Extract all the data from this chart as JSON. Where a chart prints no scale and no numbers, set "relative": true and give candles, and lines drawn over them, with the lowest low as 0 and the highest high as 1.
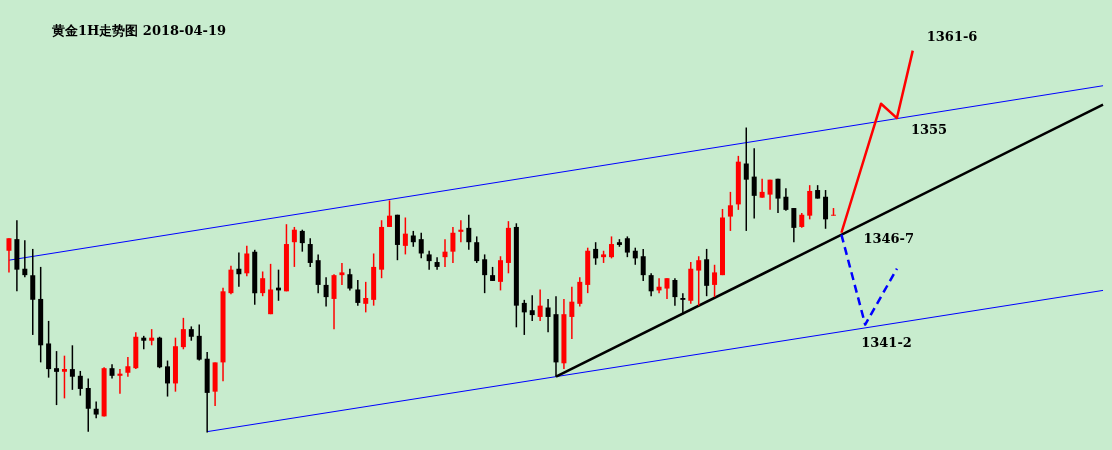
{
  "chart_data": {
    "type": "candlestick",
    "title": "黄金1H走势图  2018-04-19",
    "relative": true,
    "tick_labels": false,
    "categories": [
      null,
      null,
      null,
      null,
      null,
      null,
      null,
      null,
      null,
      null,
      null,
      null,
      null,
      null,
      null,
      null,
      null,
      null,
      null,
      null,
      null,
      null,
      null,
      null,
      null,
      null,
      null,
      null,
      null,
      null,
      null,
      null,
      null,
      null,
      null,
      null,
      null,
      null,
      null,
      null,
      null,
      null,
      null,
      null,
      null,
      null,
      null,
      null,
      null,
      null,
      null,
      null,
      null,
      null,
      null,
      null,
      null,
      null,
      null,
      null,
      null,
      null,
      null,
      null,
      null,
      null,
      null,
      null,
      null,
      null,
      null,
      null,
      null,
      null,
      null,
      null,
      null,
      null,
      null,
      null,
      null,
      null,
      null,
      null,
      null,
      null,
      null,
      null,
      null,
      null,
      null,
      null,
      null,
      null,
      null,
      null,
      null,
      null,
      null,
      null,
      null,
      null,
      null,
      null,
      null,
      null,
      null,
      null,
      null,
      null,
      null,
      null,
      null,
      null,
      null,
      null,
      null,
      null,
      null,
      null,
      null,
      null,
      null,
      null,
      null,
      null,
      null,
      null,
      null,
      null,
      null,
      null,
      null,
      null,
      null,
      null,
      null,
      null,
      null
    ],
    "ohlc": [
      [
        0.596,
        0.637,
        0.525,
        0.637
      ],
      [
        0.634,
        0.696,
        0.463,
        0.534
      ],
      [
        0.537,
        0.63,
        0.509,
        0.516
      ],
      [
        0.516,
        0.602,
        0.32,
        0.435
      ],
      [
        0.438,
        0.543,
        0.23,
        0.286
      ],
      [
        0.292,
        0.366,
        0.18,
        0.208
      ],
      [
        0.211,
        0.267,
        0.09,
        0.199
      ],
      [
        0.199,
        0.252,
        0.112,
        0.208
      ],
      [
        0.208,
        0.286,
        0.14,
        0.183
      ],
      [
        0.186,
        0.202,
        0.121,
        0.143
      ],
      [
        0.146,
        0.177,
        0.003,
        0.078
      ],
      [
        0.078,
        0.102,
        0.047,
        0.059
      ],
      [
        0.053,
        0.214,
        0.053,
        0.211
      ],
      [
        0.211,
        0.224,
        0.177,
        0.186
      ],
      [
        0.186,
        0.208,
        0.127,
        0.193
      ],
      [
        0.196,
        0.248,
        0.183,
        0.217
      ],
      [
        0.211,
        0.329,
        0.208,
        0.314
      ],
      [
        0.311,
        0.317,
        0.273,
        0.301
      ],
      [
        0.301,
        0.339,
        0.286,
        0.311
      ],
      [
        0.311,
        0.314,
        0.211,
        0.214
      ],
      [
        0.217,
        0.236,
        0.118,
        0.161
      ],
      [
        0.161,
        0.311,
        0.134,
        0.283
      ],
      [
        0.28,
        0.376,
        0.273,
        0.339
      ],
      [
        0.339,
        0.348,
        0.301,
        0.314
      ],
      [
        0.317,
        0.354,
        0.236,
        0.239
      ],
      [
        0.242,
        0.264,
        0,
        0.13
      ],
      [
        0.134,
        0.23,
        0.087,
        0.23
      ],
      [
        0.23,
        0.475,
        0.168,
        0.463
      ],
      [
        0.457,
        0.547,
        0.453,
        0.534
      ],
      [
        0.537,
        0.59,
        0.478,
        0.519
      ],
      [
        0.522,
        0.612,
        0.512,
        0.587
      ],
      [
        0.593,
        0.599,
        0.419,
        0.457
      ],
      [
        0.457,
        0.528,
        0.447,
        0.506
      ],
      [
        0.388,
        0.553,
        0.388,
        0.469
      ],
      [
        0.475,
        0.534,
        0.432,
        0.466
      ],
      [
        0.463,
        0.683,
        0.463,
        0.618
      ],
      [
        0.624,
        0.674,
        0.543,
        0.665
      ],
      [
        0.661,
        0.665,
        0.593,
        0.621
      ],
      [
        0.618,
        0.637,
        0.543,
        0.556
      ],
      [
        0.565,
        0.584,
        0.457,
        0.484
      ],
      [
        0.484,
        0.509,
        0.413,
        0.444
      ],
      [
        0.438,
        0.519,
        0.339,
        0.516
      ],
      [
        0.516,
        0.556,
        0.484,
        0.525
      ],
      [
        0.519,
        0.537,
        0.466,
        0.472
      ],
      [
        0.469,
        0.5,
        0.416,
        0.425
      ],
      [
        0.422,
        0.494,
        0.394,
        0.441
      ],
      [
        0.435,
        0.587,
        0.416,
        0.543
      ],
      [
        0.534,
        0.696,
        0.506,
        0.674
      ],
      [
        0.674,
        0.761,
        0.674,
        0.711
      ],
      [
        0.714,
        0.714,
        0.565,
        0.615
      ],
      [
        0.612,
        0.705,
        0.584,
        0.652
      ],
      [
        0.646,
        0.661,
        0.609,
        0.624
      ],
      [
        0.634,
        0.655,
        0.571,
        0.587
      ],
      [
        0.584,
        0.596,
        0.534,
        0.562
      ],
      [
        0.559,
        0.575,
        0.534,
        0.543
      ],
      [
        0.575,
        0.634,
        0.543,
        0.593
      ],
      [
        0.593,
        0.674,
        0.556,
        0.655
      ],
      [
        0.658,
        0.696,
        0.624,
        0.665
      ],
      [
        0.671,
        0.714,
        0.599,
        0.624
      ],
      [
        0.624,
        0.643,
        0.556,
        0.562
      ],
      [
        0.568,
        0.584,
        0.457,
        0.516
      ],
      [
        0.516,
        0.543,
        0.497,
        0.497
      ],
      [
        0.494,
        0.578,
        0.466,
        0.565
      ],
      [
        0.556,
        0.693,
        0.522,
        0.671
      ],
      [
        0.674,
        0.686,
        0.345,
        0.416
      ],
      [
        0.425,
        0.435,
        0.32,
        0.394
      ],
      [
        0.401,
        0.45,
        0.366,
        0.385
      ],
      [
        0.379,
        0.469,
        0.366,
        0.416
      ],
      [
        0.41,
        0.438,
        0.329,
        0.379
      ],
      [
        0.388,
        0.447,
        0.183,
        0.23
      ],
      [
        0.227,
        0.438,
        0.208,
        0.388
      ],
      [
        0.379,
        0.478,
        0.307,
        0.429
      ],
      [
        0.422,
        0.509,
        0.413,
        0.494
      ],
      [
        0.484,
        0.606,
        0.457,
        0.596
      ],
      [
        0.602,
        0.624,
        0.55,
        0.571
      ],
      [
        0.575,
        0.596,
        0.556,
        0.584
      ],
      [
        0.575,
        0.643,
        0.571,
        0.618
      ],
      [
        0.624,
        0.634,
        0.609,
        0.615
      ],
      [
        0.637,
        0.643,
        0.575,
        0.59
      ],
      [
        0.596,
        0.606,
        0.55,
        0.571
      ],
      [
        0.578,
        0.602,
        0.497,
        0.516
      ],
      [
        0.516,
        0.522,
        0.447,
        0.463
      ],
      [
        0.466,
        0.506,
        0.457,
        0.478
      ],
      [
        0.472,
        0.506,
        0.438,
        0.506
      ],
      [
        0.5,
        0.506,
        0.416,
        0.444
      ],
      [
        0.441,
        0.457,
        0.388,
        0.435
      ],
      [
        0.432,
        0.559,
        0.422,
        0.537
      ],
      [
        0.531,
        0.578,
        0.416,
        0.565
      ],
      [
        0.568,
        0.602,
        0.447,
        0.481
      ],
      [
        0.484,
        0.55,
        0.444,
        0.525
      ],
      [
        0.516,
        0.733,
        0.516,
        0.705
      ],
      [
        0.708,
        0.789,
        0.661,
        0.745
      ],
      [
        0.748,
        0.907,
        0.73,
        0.888
      ],
      [
        0.882,
        1,
        0.661,
        0.829
      ],
      [
        0.839,
        0.932,
        0.702,
        0.776
      ],
      [
        0.77,
        0.832,
        0.77,
        0.789
      ],
      [
        0.78,
        0.829,
        0.73,
        0.829
      ],
      [
        0.832,
        0.832,
        0.72,
        0.767
      ],
      [
        0.773,
        0.801,
        0.727,
        0.73
      ],
      [
        0.736,
        0.736,
        0.624,
        0.671
      ],
      [
        0.674,
        0.72,
        0.671,
        0.714
      ],
      [
        0.711,
        0.811,
        0.699,
        0.792
      ],
      [
        0.795,
        0.811,
        0.767,
        0.767
      ],
      [
        0.773,
        0.795,
        0.668,
        0.699
      ],
      [
        0.711,
        0.736,
        0.711,
        0.714
      ],
      null,
      null,
      null,
      null,
      null,
      null,
      null,
      null,
      null,
      null,
      null,
      null,
      null,
      null,
      null,
      null,
      null,
      null,
      null,
      null,
      null,
      null,
      null,
      null,
      null,
      null,
      null,
      null,
      null,
      null,
      null,
      null,
      null,
      null
    ],
    "colors": [
      "#ff0000",
      "#000000",
      "#000000",
      "#000000",
      "#000000",
      "#000000",
      "#000000",
      "#ff0000",
      "#000000",
      "#000000",
      "#000000",
      "#000000",
      "#ff0000",
      "#000000",
      "#ff0000",
      "#ff0000",
      "#ff0000",
      "#000000",
      "#ff0000",
      "#000000",
      "#000000",
      "#ff0000",
      "#ff0000",
      "#000000",
      "#000000",
      "#000000",
      "#ff0000",
      "#ff0000",
      "#ff0000",
      "#000000",
      "#ff0000",
      "#000000",
      "#ff0000",
      "#ff0000",
      "#000000",
      "#ff0000",
      "#ff0000",
      "#000000",
      "#000000",
      "#000000",
      "#000000",
      "#ff0000",
      "#ff0000",
      "#000000",
      "#000000",
      "#ff0000",
      "#ff0000",
      "#ff0000",
      "#ff0000",
      "#000000",
      "#ff0000",
      "#000000",
      "#000000",
      "#000000",
      "#000000",
      "#ff0000",
      "#ff0000",
      "#ff0000",
      "#000000",
      "#000000",
      "#000000",
      "#000000",
      "#ff0000",
      "#ff0000",
      "#000000",
      "#000000",
      "#000000",
      "#ff0000",
      "#000000",
      "#000000",
      "#ff0000",
      "#ff0000",
      "#ff0000",
      "#ff0000",
      "#000000",
      "#ff0000",
      "#ff0000",
      "#000000",
      "#000000",
      "#000000",
      "#000000",
      "#000000",
      "#ff0000",
      "#ff0000",
      "#000000",
      "#000000",
      "#ff0000",
      "#ff0000",
      "#000000",
      "#ff0000",
      "#ff0000",
      "#ff0000",
      "#ff0000",
      "#000000",
      "#000000",
      "#ff0000",
      "#ff0000",
      "#000000",
      "#000000",
      "#000000",
      "#ff0000",
      "#ff0000",
      "#000000",
      "#000000",
      "#ff0000",
      null,
      null,
      null,
      null,
      null,
      null,
      null,
      null,
      null,
      null,
      null,
      null,
      null,
      null,
      null,
      null,
      null,
      null,
      null,
      null,
      null,
      null,
      null,
      null,
      null,
      null,
      null,
      null,
      null,
      null,
      null,
      null,
      null,
      null
    ],
    "series": [
      {
        "type": "line",
        "color": "#0000ff",
        "line_style": "solid",
        "values": [
          0.565,
          null,
          null,
          null,
          null,
          null,
          null,
          null,
          null,
          null,
          null,
          null,
          null,
          null,
          null,
          null,
          null,
          null,
          null,
          null,
          null,
          null,
          null,
          null,
          null,
          null,
          null,
          null,
          null,
          null,
          null,
          null,
          null,
          null,
          null,
          null,
          null,
          null,
          null,
          null,
          null,
          null,
          null,
          null,
          null,
          null,
          null,
          null,
          null,
          null,
          null,
          null,
          null,
          null,
          null,
          null,
          null,
          null,
          null,
          null,
          null,
          null,
          null,
          null,
          null,
          null,
          null,
          null,
          null,
          null,
          null,
          null,
          null,
          null,
          null,
          null,
          null,
          null,
          null,
          null,
          null,
          null,
          null,
          null,
          null,
          null,
          null,
          null,
          null,
          null,
          null,
          null,
          null,
          null,
          null,
          null,
          null,
          null,
          null,
          null,
          null,
          null,
          null,
          null,
          null,
          null,
          null,
          null,
          null,
          null,
          null,
          null,
          null,
          null,
          null,
          null,
          null,
          null,
          null,
          null,
          null,
          null,
          null,
          null,
          null,
          null,
          null,
          null,
          null,
          null,
          null,
          null,
          null,
          null,
          null,
          null,
          null,
          null,
          1.137
        ]
      },
      {
        "type": "line",
        "color": "#0000ff",
        "line_style": "solid",
        "values": [
          null,
          null,
          null,
          null,
          null,
          null,
          null,
          null,
          null,
          null,
          null,
          null,
          null,
          null,
          null,
          null,
          null,
          null,
          null,
          null,
          null,
          null,
          null,
          null,
          null,
          0.003,
          null,
          null,
          null,
          null,
          null,
          null,
          null,
          null,
          null,
          null,
          null,
          null,
          null,
          null,
          null,
          null,
          null,
          null,
          null,
          null,
          null,
          null,
          null,
          null,
          null,
          null,
          null,
          null,
          null,
          null,
          null,
          null,
          null,
          null,
          null,
          null,
          null,
          null,
          null,
          null,
          null,
          null,
          null,
          null,
          null,
          null,
          null,
          null,
          null,
          null,
          null,
          null,
          null,
          null,
          null,
          null,
          null,
          null,
          null,
          null,
          null,
          null,
          null,
          null,
          null,
          null,
          null,
          null,
          null,
          null,
          null,
          null,
          null,
          null,
          null,
          null,
          null,
          null,
          null,
          null,
          null,
          null,
          null,
          null,
          null,
          null,
          null,
          null,
          null,
          null,
          null,
          null,
          null,
          null,
          null,
          null,
          null,
          null,
          null,
          null,
          null,
          null,
          null,
          null,
          null,
          null,
          null,
          null,
          null,
          null,
          null,
          null,
          0.466
        ]
      },
      {
        "type": "line",
        "color": "#000000",
        "line_style": "solid",
        "values": [
          null,
          null,
          null,
          null,
          null,
          null,
          null,
          null,
          null,
          null,
          null,
          null,
          null,
          null,
          null,
          null,
          null,
          null,
          null,
          null,
          null,
          null,
          null,
          null,
          null,
          null,
          null,
          null,
          null,
          null,
          null,
          null,
          null,
          null,
          null,
          null,
          null,
          null,
          null,
          null,
          null,
          null,
          null,
          null,
          null,
          null,
          null,
          null,
          null,
          null,
          null,
          null,
          null,
          null,
          null,
          null,
          null,
          null,
          null,
          null,
          null,
          null,
          null,
          null,
          null,
          null,
          null,
          null,
          null,
          0.183,
          null,
          null,
          null,
          null,
          null,
          null,
          null,
          null,
          null,
          null,
          null,
          null,
          null,
          null,
          null,
          null,
          null,
          null,
          null,
          null,
          null,
          null,
          null,
          null,
          null,
          null,
          null,
          null,
          null,
          null,
          null,
          null,
          null,
          null,
          null,
          null,
          null,
          null,
          null,
          null,
          null,
          null,
          null,
          null,
          null,
          null,
          null,
          null,
          null,
          null,
          null,
          null,
          null,
          null,
          null,
          null,
          null,
          null,
          null,
          null,
          null,
          null,
          null,
          null,
          null,
          null,
          null,
          null,
          1.075
        ]
      },
      {
        "type": "line",
        "color": "#ff0000",
        "line_style": "solid",
        "values": [
          null,
          null,
          null,
          null,
          null,
          null,
          null,
          null,
          null,
          null,
          null,
          null,
          null,
          null,
          null,
          null,
          null,
          null,
          null,
          null,
          null,
          null,
          null,
          null,
          null,
          null,
          null,
          null,
          null,
          null,
          null,
          null,
          null,
          null,
          null,
          null,
          null,
          null,
          null,
          null,
          null,
          null,
          null,
          null,
          null,
          null,
          null,
          null,
          null,
          null,
          null,
          null,
          null,
          null,
          null,
          null,
          null,
          null,
          null,
          null,
          null,
          null,
          null,
          null,
          null,
          null,
          null,
          null,
          null,
          null,
          null,
          null,
          null,
          null,
          null,
          null,
          null,
          null,
          null,
          null,
          null,
          null,
          null,
          null,
          null,
          null,
          null,
          null,
          null,
          null,
          null,
          null,
          null,
          null,
          null,
          null,
          null,
          null,
          null,
          null,
          null,
          null,
          null,
          null,
          null,
          0.655,
          null,
          null,
          null,
          null,
          1.078,
          null,
          1.031,
          null,
          1.252,
          null,
          null,
          null,
          null,
          null,
          null,
          null,
          null,
          null,
          null,
          null,
          null,
          null,
          null,
          null,
          null,
          null,
          null,
          null,
          null,
          null,
          null,
          null,
          null
        ]
      },
      {
        "type": "line",
        "color": "#0000ff",
        "line_style": "dashed",
        "values": [
          null,
          null,
          null,
          null,
          null,
          null,
          null,
          null,
          null,
          null,
          null,
          null,
          null,
          null,
          null,
          null,
          null,
          null,
          null,
          null,
          null,
          null,
          null,
          null,
          null,
          null,
          null,
          null,
          null,
          null,
          null,
          null,
          null,
          null,
          null,
          null,
          null,
          null,
          null,
          null,
          null,
          null,
          null,
          null,
          null,
          null,
          null,
          null,
          null,
          null,
          null,
          null,
          null,
          null,
          null,
          null,
          null,
          null,
          null,
          null,
          null,
          null,
          null,
          null,
          null,
          null,
          null,
          null,
          null,
          null,
          null,
          null,
          null,
          null,
          null,
          null,
          null,
          null,
          null,
          null,
          null,
          null,
          null,
          null,
          null,
          null,
          null,
          null,
          null,
          null,
          null,
          null,
          null,
          null,
          null,
          null,
          null,
          null,
          null,
          null,
          null,
          null,
          null,
          null,
          null,
          0.649,
          null,
          null,
          0.354,
          null,
          null,
          null,
          0.537,
          null,
          null,
          null,
          null,
          null,
          null,
          null,
          null,
          null,
          null,
          null,
          null,
          null,
          null,
          null,
          null,
          null,
          null,
          null,
          null,
          null,
          null,
          null,
          null,
          null,
          null
        ]
      }
    ],
    "annotations": [
      "1361-6",
      "1355",
      "1346-7",
      "1341-2"
    ]
  }
}
